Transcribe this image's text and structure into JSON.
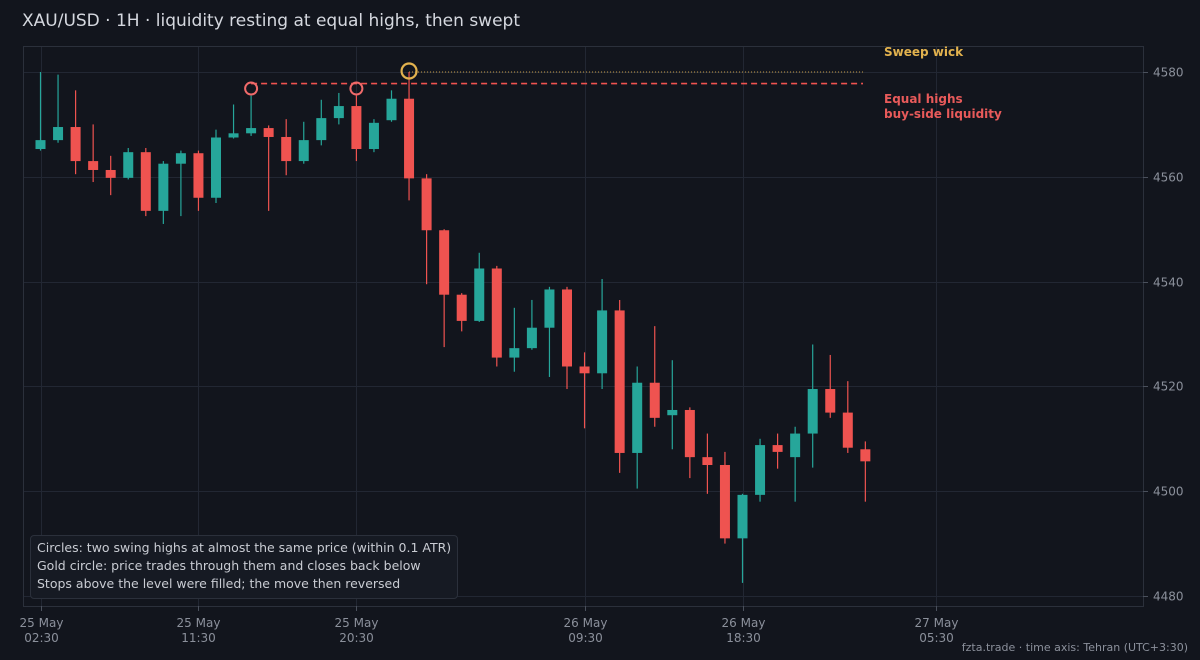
{
  "title": "XAU/USD · 1H · liquidity resting at equal highs, then swept",
  "notes": [
    "Circles: two swing highs at almost the same price (within 0.1 ATR)",
    "Gold circle: price trades through them and closes back below",
    "Stops above the level were filled; the move then reversed"
  ],
  "footer": "fzta.trade  ·  time axis: Tehran (UTC+3:30)",
  "annotations": {
    "sweep_label": "Sweep wick",
    "equal_highs_line1": "Equal highs",
    "equal_highs_line2": "buy-side liquidity"
  },
  "colors": {
    "background": "#12151d",
    "up": "#26a69a",
    "down": "#ef5350",
    "equal_highs": "#ef5350",
    "sweep": "#e2b24e",
    "grid": "#222733",
    "axis_text": "#8b909b"
  },
  "chart_data": {
    "type": "candlestick",
    "title": "XAU/USD · 1H · liquidity resting at equal highs, then swept",
    "symbol": "XAU/USD",
    "timeframe": "1H",
    "ylim": [
      4478,
      4585
    ],
    "y_ticks": [
      4480,
      4500,
      4520,
      4540,
      4560,
      4580
    ],
    "x_tick_labels": [
      {
        "index": 0,
        "label": [
          "25 May",
          "02:30"
        ]
      },
      {
        "index": 9,
        "label": [
          "25 May",
          "11:30"
        ]
      },
      {
        "index": 18,
        "label": [
          "25 May",
          "20:30"
        ]
      },
      {
        "index": 31,
        "label": [
          "26 May",
          "09:30"
        ]
      },
      {
        "index": 40,
        "label": [
          "26 May",
          "18:30"
        ]
      },
      {
        "index": 51,
        "label": [
          "27 May",
          "05:30"
        ]
      }
    ],
    "grid": true,
    "candles": [
      {
        "o": 4565.3,
        "h": 4580.0,
        "l": 4565.0,
        "c": 4567.0
      },
      {
        "o": 4567.0,
        "h": 4579.5,
        "l": 4566.5,
        "c": 4569.5
      },
      {
        "o": 4569.5,
        "h": 4576.5,
        "l": 4560.5,
        "c": 4563.0
      },
      {
        "o": 4563.0,
        "h": 4570.0,
        "l": 4559.0,
        "c": 4561.3
      },
      {
        "o": 4561.3,
        "h": 4564.0,
        "l": 4556.5,
        "c": 4559.8
      },
      {
        "o": 4559.8,
        "h": 4565.5,
        "l": 4559.5,
        "c": 4564.7
      },
      {
        "o": 4564.7,
        "h": 4565.5,
        "l": 4552.5,
        "c": 4553.5
      },
      {
        "o": 4553.5,
        "h": 4563.0,
        "l": 4551.0,
        "c": 4562.5
      },
      {
        "o": 4562.5,
        "h": 4565.0,
        "l": 4552.5,
        "c": 4564.5
      },
      {
        "o": 4564.5,
        "h": 4565.0,
        "l": 4553.5,
        "c": 4556.0
      },
      {
        "o": 4556.0,
        "h": 4569.0,
        "l": 4555.0,
        "c": 4567.5
      },
      {
        "o": 4567.5,
        "h": 4573.8,
        "l": 4567.3,
        "c": 4568.3
      },
      {
        "o": 4568.3,
        "h": 4575.5,
        "l": 4567.8,
        "c": 4569.3
      },
      {
        "o": 4569.3,
        "h": 4569.8,
        "l": 4553.5,
        "c": 4567.6
      },
      {
        "o": 4567.6,
        "h": 4571.0,
        "l": 4560.3,
        "c": 4563.0
      },
      {
        "o": 4563.0,
        "h": 4570.5,
        "l": 4562.5,
        "c": 4567.0
      },
      {
        "o": 4567.0,
        "h": 4574.7,
        "l": 4566.0,
        "c": 4571.2
      },
      {
        "o": 4571.2,
        "h": 4576.0,
        "l": 4570.0,
        "c": 4573.5
      },
      {
        "o": 4573.5,
        "h": 4575.5,
        "l": 4563.0,
        "c": 4565.3
      },
      {
        "o": 4565.3,
        "h": 4571.0,
        "l": 4564.7,
        "c": 4570.3
      },
      {
        "o": 4570.8,
        "h": 4576.5,
        "l": 4570.5,
        "c": 4574.9
      },
      {
        "o": 4574.9,
        "h": 4580.0,
        "l": 4555.5,
        "c": 4559.7
      },
      {
        "o": 4559.7,
        "h": 4560.5,
        "l": 4539.5,
        "c": 4549.8
      },
      {
        "o": 4549.8,
        "h": 4550.0,
        "l": 4527.5,
        "c": 4537.5
      },
      {
        "o": 4537.5,
        "h": 4537.8,
        "l": 4530.5,
        "c": 4532.5
      },
      {
        "o": 4532.5,
        "h": 4545.5,
        "l": 4532.3,
        "c": 4542.5
      },
      {
        "o": 4542.5,
        "h": 4543.0,
        "l": 4523.8,
        "c": 4525.5
      },
      {
        "o": 4525.5,
        "h": 4535.0,
        "l": 4522.8,
        "c": 4527.3
      },
      {
        "o": 4527.3,
        "h": 4536.5,
        "l": 4527.0,
        "c": 4531.2
      },
      {
        "o": 4531.2,
        "h": 4539.0,
        "l": 4521.8,
        "c": 4538.5
      },
      {
        "o": 4538.5,
        "h": 4539.0,
        "l": 4519.5,
        "c": 4523.8
      },
      {
        "o": 4523.8,
        "h": 4526.5,
        "l": 4512.0,
        "c": 4522.5
      },
      {
        "o": 4522.5,
        "h": 4540.5,
        "l": 4519.5,
        "c": 4534.5
      },
      {
        "o": 4534.5,
        "h": 4536.5,
        "l": 4503.5,
        "c": 4507.3
      },
      {
        "o": 4507.3,
        "h": 4523.8,
        "l": 4500.5,
        "c": 4520.7
      },
      {
        "o": 4520.7,
        "h": 4531.5,
        "l": 4512.3,
        "c": 4514.0
      },
      {
        "o": 4514.5,
        "h": 4525.0,
        "l": 4508.0,
        "c": 4515.5
      },
      {
        "o": 4515.5,
        "h": 4516.0,
        "l": 4502.5,
        "c": 4506.5
      },
      {
        "o": 4506.5,
        "h": 4511.0,
        "l": 4499.5,
        "c": 4505.0
      },
      {
        "o": 4505.0,
        "h": 4507.5,
        "l": 4490.0,
        "c": 4491.0
      },
      {
        "o": 4491.0,
        "h": 4499.5,
        "l": 4482.5,
        "c": 4499.3
      },
      {
        "o": 4499.3,
        "h": 4510.0,
        "l": 4498.0,
        "c": 4508.8
      },
      {
        "o": 4508.8,
        "h": 4511.0,
        "l": 4504.3,
        "c": 4507.5
      },
      {
        "o": 4506.5,
        "h": 4512.3,
        "l": 4498.0,
        "c": 4511.0
      },
      {
        "o": 4511.0,
        "h": 4528.0,
        "l": 4504.5,
        "c": 4519.5
      },
      {
        "o": 4519.5,
        "h": 4526.0,
        "l": 4514.0,
        "c": 4515.0
      },
      {
        "o": 4515.0,
        "h": 4521.0,
        "l": 4507.3,
        "c": 4508.3
      },
      {
        "o": 4508.0,
        "h": 4509.5,
        "l": 4498.0,
        "c": 4505.7
      }
    ],
    "tick_index": [
      0,
      9,
      18,
      31,
      40,
      51
    ],
    "equal_highs": {
      "price": 4577.8,
      "swing_candles": [
        12,
        18
      ]
    },
    "sweep": {
      "price": 4580.0,
      "candle": 21
    }
  }
}
